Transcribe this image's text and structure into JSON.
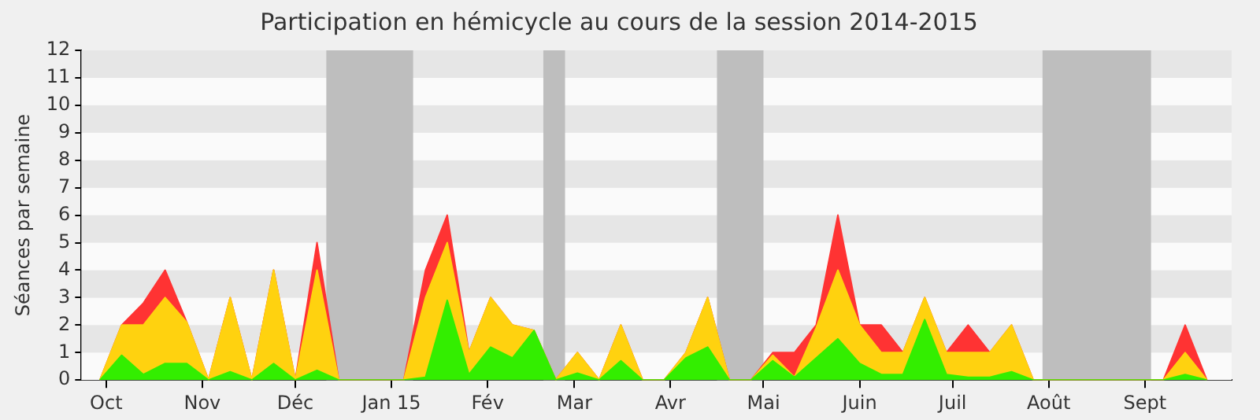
{
  "chart_data": {
    "type": "area",
    "stacked": true,
    "title": "Participation en hémicycle au cours de la session 2014-2015",
    "ylabel": "Séances par semaine",
    "x": [
      "2014-09-29",
      "2014-10-06",
      "2014-10-13",
      "2014-10-20",
      "2014-10-27",
      "2014-11-03",
      "2014-11-10",
      "2014-11-17",
      "2014-11-24",
      "2014-12-01",
      "2014-12-08",
      "2014-12-15",
      "2014-12-22",
      "2014-12-29",
      "2015-01-05",
      "2015-01-12",
      "2015-01-19",
      "2015-01-26",
      "2015-02-02",
      "2015-02-09",
      "2015-02-16",
      "2015-02-23",
      "2015-03-02",
      "2015-03-09",
      "2015-03-16",
      "2015-03-23",
      "2015-03-30",
      "2015-04-06",
      "2015-04-13",
      "2015-04-20",
      "2015-04-27",
      "2015-05-04",
      "2015-05-11",
      "2015-05-18",
      "2015-05-25",
      "2015-06-01",
      "2015-06-08",
      "2015-06-15",
      "2015-06-22",
      "2015-06-29",
      "2015-07-06",
      "2015-07-13",
      "2015-07-20",
      "2015-07-27",
      "2015-08-03",
      "2015-08-10",
      "2015-08-17",
      "2015-08-24",
      "2015-08-31",
      "2015-09-07",
      "2015-09-14",
      "2015-09-21"
    ],
    "series": [
      {
        "color": "#33ee00",
        "values": [
          0,
          0.9,
          0.2,
          0.6,
          0.6,
          0,
          0.3,
          0,
          0.6,
          0,
          0.35,
          0,
          0,
          0,
          0,
          0.1,
          2.9,
          0.2,
          1.2,
          0.8,
          1.8,
          0,
          0.25,
          0,
          0.7,
          0,
          0,
          0.8,
          1.2,
          0,
          0,
          0.7,
          0.1,
          0.8,
          1.5,
          0.6,
          0.2,
          0.2,
          2.2,
          0.2,
          0.1,
          0.1,
          0.3,
          0,
          0,
          0,
          0,
          0,
          0,
          0,
          0.2,
          0
        ]
      },
      {
        "color": "#ffd20f",
        "values": [
          0,
          1.1,
          1.8,
          2.4,
          1.5,
          0,
          2.7,
          0,
          3.4,
          0,
          3.65,
          0,
          0,
          0,
          0,
          2.9,
          2.1,
          0.8,
          1.8,
          1.2,
          0,
          0,
          0.75,
          0,
          1.3,
          0,
          0,
          0.2,
          1.8,
          0,
          0,
          0.2,
          0,
          1.1,
          2.5,
          1.4,
          0.8,
          0.8,
          0.8,
          0.8,
          0.9,
          0.9,
          1.7,
          0,
          0,
          0,
          0,
          0,
          0,
          0,
          0.8,
          0
        ]
      },
      {
        "color": "#ff3333",
        "values": [
          0,
          0,
          0.8,
          1,
          0,
          0,
          0,
          0,
          0,
          0,
          1,
          0,
          0,
          0,
          0,
          1,
          1,
          0,
          0,
          0,
          0,
          0,
          0,
          0,
          0,
          0,
          0,
          0,
          0,
          0,
          0,
          0.1,
          0.9,
          0.1,
          2,
          0,
          1,
          0,
          0,
          0,
          1,
          0,
          0,
          0,
          0,
          0,
          0,
          0,
          0,
          0,
          1,
          0
        ]
      }
    ],
    "xlim": [
      "2014-09-23",
      "2015-09-29"
    ],
    "xticks": [
      {
        "value": "2014-10-01",
        "label": "Oct"
      },
      {
        "value": "2014-11-01",
        "label": "Nov"
      },
      {
        "value": "2014-12-01",
        "label": "Déc"
      },
      {
        "value": "2015-01-01",
        "label": "Jan 15"
      },
      {
        "value": "2015-02-01",
        "label": "Fév"
      },
      {
        "value": "2015-03-01",
        "label": "Mar"
      },
      {
        "value": "2015-04-01",
        "label": "Avr"
      },
      {
        "value": "2015-05-01",
        "label": "Mai"
      },
      {
        "value": "2015-06-01",
        "label": "Juin"
      },
      {
        "value": "2015-07-01",
        "label": "Juil"
      },
      {
        "value": "2015-08-01",
        "label": "Août"
      },
      {
        "value": "2015-09-01",
        "label": "Sept"
      }
    ],
    "ylim": [
      0,
      12
    ],
    "yticks": [
      0,
      1,
      2,
      3,
      4,
      5,
      6,
      7,
      8,
      9,
      10,
      11,
      12
    ],
    "legend": false,
    "bands": [
      {
        "axis": "x",
        "from": "2014-12-11",
        "to": "2015-01-08",
        "color": "#bebebe"
      },
      {
        "axis": "x",
        "from": "2015-02-19",
        "to": "2015-02-26",
        "color": "#bebebe"
      },
      {
        "axis": "x",
        "from": "2015-04-16",
        "to": "2015-05-01",
        "color": "#bebebe"
      },
      {
        "axis": "x",
        "from": "2015-07-30",
        "to": "2015-09-03",
        "color": "#bebebe"
      }
    ]
  }
}
